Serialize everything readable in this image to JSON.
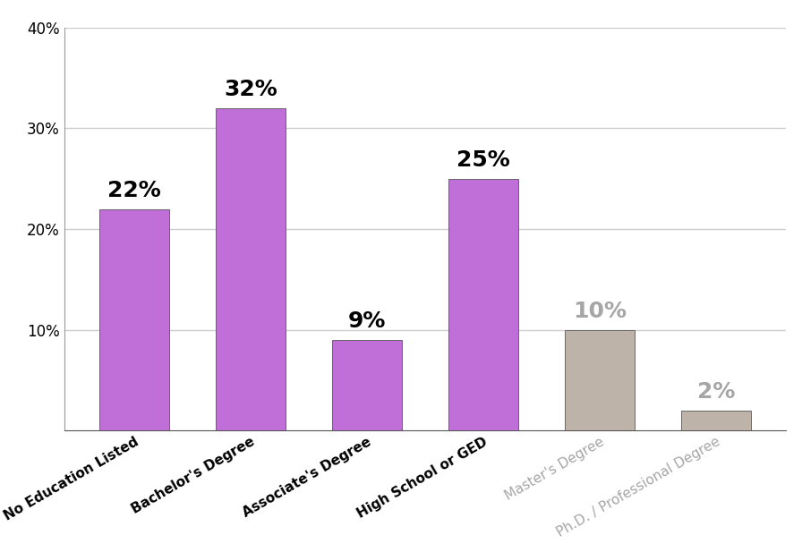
{
  "chart_data": {
    "type": "bar",
    "categories": [
      "No Education Listed",
      "Bachelor's Degree",
      "Associate's Degree",
      "High School or GED",
      "Master's Degree",
      "Ph.D. / Professional Degree"
    ],
    "values": [
      22,
      32,
      9,
      25,
      10,
      2
    ],
    "value_labels": [
      "22%",
      "32%",
      "9%",
      "25%",
      "10%",
      "2%"
    ],
    "data_labels": true,
    "colors": [
      "#c06fd8",
      "#c06fd8",
      "#c06fd8",
      "#c06fd8",
      "#bdb3a8",
      "#bdb3a8"
    ],
    "ylim": [
      0,
      40
    ],
    "yticks": [
      {
        "value": 10,
        "label": "10%"
      },
      {
        "value": 20,
        "label": "20%"
      },
      {
        "value": 30,
        "label": "30%"
      },
      {
        "value": 40,
        "label": "40%"
      }
    ],
    "grid": true
  }
}
